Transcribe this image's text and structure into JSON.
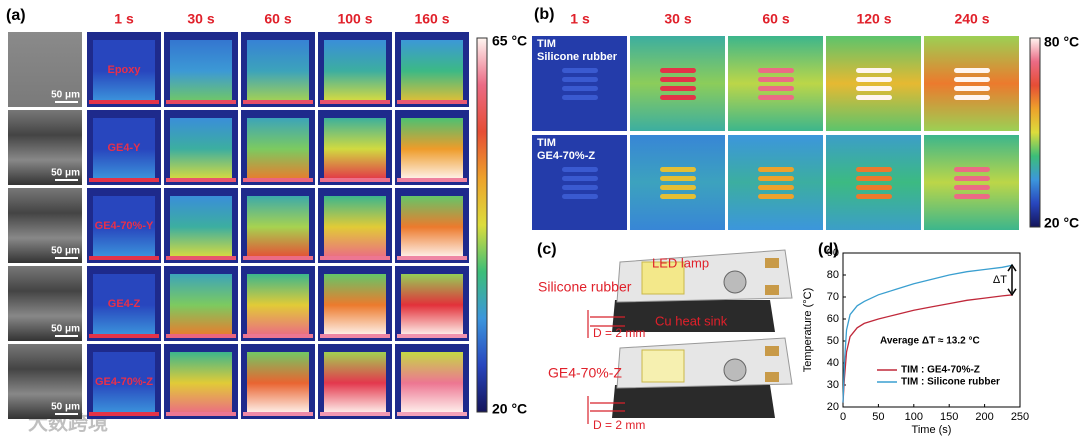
{
  "watermark": "大数跨境",
  "panel_a": {
    "label": "(a)",
    "times": [
      "1 s",
      "30 s",
      "60 s",
      "100 s",
      "160 s"
    ],
    "samples": [
      "Epoxy",
      "GE4-Y",
      "GE4-70%-Y",
      "GE4-Z",
      "GE4-70%-Z"
    ],
    "scale_bar": "50 μm",
    "colorbar": {
      "max": "65 °C",
      "min": "20 °C"
    }
  },
  "panel_b": {
    "label": "(b)",
    "times": [
      "1 s",
      "30 s",
      "60 s",
      "120 s",
      "240 s"
    ],
    "samples": [
      [
        "TIM",
        "Silicone rubber"
      ],
      [
        "TIM",
        "GE4-70%-Z"
      ]
    ],
    "colorbar": {
      "max": "80 °C",
      "min": "20 °C"
    }
  },
  "panel_c": {
    "label": "(c)",
    "labels": {
      "led": "LED lamp",
      "silicone": "Silicone rubber",
      "heat_sink": "Cu heat sink",
      "thickness_top": "D = 2 mm",
      "ge": "GE4-70%-Z",
      "thickness_bottom": "D = 2 mm"
    }
  },
  "chart_data": {
    "type": "line",
    "panel_label": "(d)",
    "x_label": "Time (s)",
    "y_label": "Temperature (°C)",
    "x": [
      0,
      2,
      5,
      10,
      20,
      30,
      50,
      75,
      100,
      125,
      150,
      175,
      200,
      225,
      240
    ],
    "series": [
      {
        "name": "TIM : GE4-70%-Z",
        "color": "#c0283a",
        "values": [
          22,
          33,
          45,
          52,
          56,
          58,
          60,
          62,
          64,
          65.5,
          67,
          68.5,
          69.5,
          70.5,
          71
        ]
      },
      {
        "name": "TIM : Silicone rubber",
        "color": "#3a9fd0",
        "values": [
          22,
          40,
          55,
          62,
          66,
          68,
          71,
          73.5,
          76,
          78,
          80,
          81.5,
          82.5,
          83.5,
          84.5
        ]
      }
    ],
    "xlim": [
      0,
      250
    ],
    "ylim": [
      20,
      90
    ],
    "xticks": [
      0,
      50,
      100,
      150,
      200,
      250
    ],
    "yticks": [
      20,
      30,
      40,
      50,
      60,
      70,
      80,
      90
    ],
    "annotations": [
      "ΔT",
      "Average ΔT ≈ 13.2 °C"
    ]
  }
}
